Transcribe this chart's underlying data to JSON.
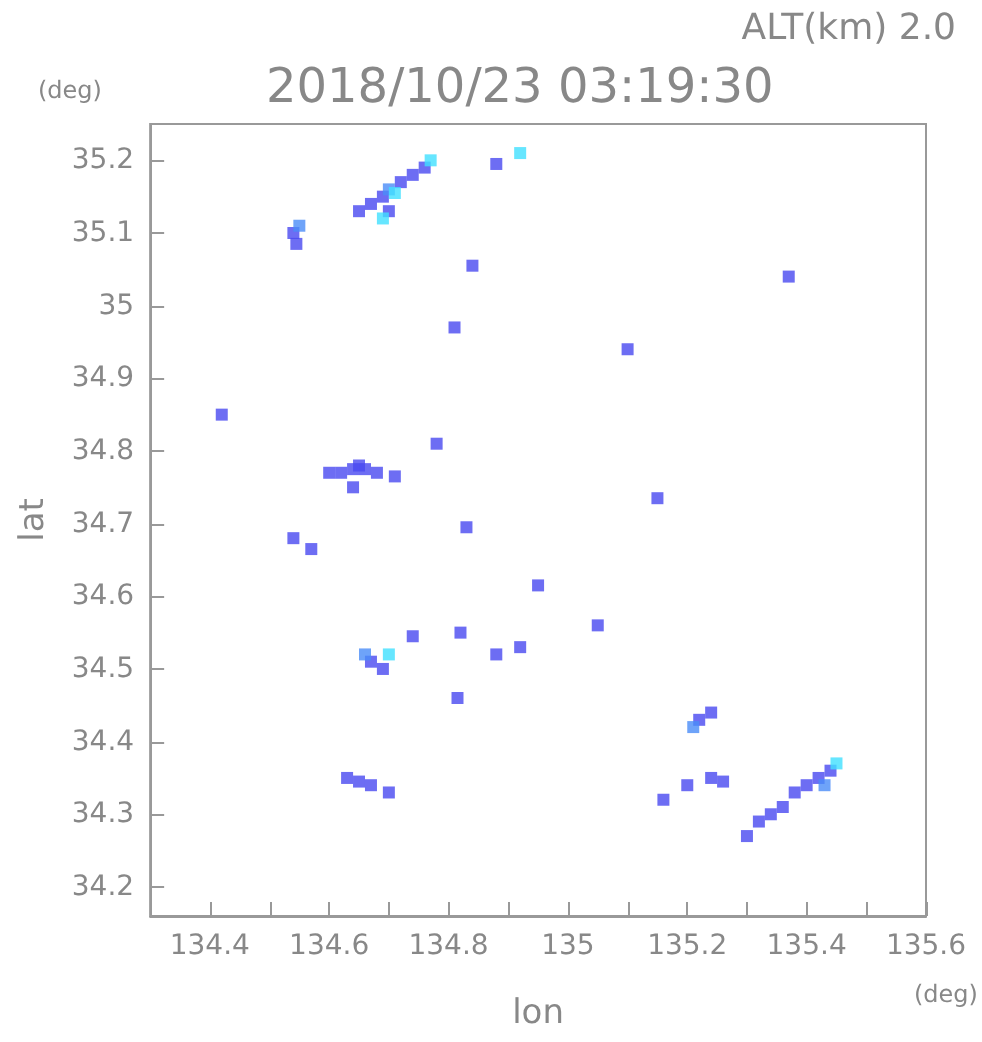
{
  "chart_data": {
    "type": "scatter",
    "title": "2018/10/23 03:19:30",
    "subtitle": "ALT(km) 2.0",
    "xlabel": "lon",
    "ylabel": "lat",
    "annotations": [
      "(deg)",
      "(deg)"
    ],
    "xlim": [
      134.3,
      135.6
    ],
    "ylim": [
      34.16,
      35.25
    ],
    "xticks": [
      {
        "value": 134.3,
        "label": null
      },
      134.4,
      {
        "value": 134.5,
        "label": null
      },
      134.6,
      {
        "value": 134.7,
        "label": null
      },
      134.8,
      {
        "value": 134.9,
        "label": null
      },
      135.0,
      {
        "value": 135.1,
        "label": null
      },
      135.2,
      {
        "value": 135.3,
        "label": null
      },
      135.4,
      {
        "value": 135.5,
        "label": null
      },
      135.6
    ],
    "yticks": [
      34.2,
      34.3,
      34.4,
      34.5,
      34.6,
      34.7,
      34.8,
      34.9,
      35.0,
      35.1,
      35.2
    ],
    "grid": false,
    "marker": "square",
    "series": [
      {
        "color": "#4848f0",
        "x": [
          134.54,
          134.545,
          134.65,
          134.67,
          134.69,
          134.7,
          134.72,
          134.74,
          134.76,
          134.88,
          134.84,
          134.81,
          134.42,
          134.78,
          135.1,
          135.37,
          134.6,
          134.62,
          134.64,
          134.65,
          134.66,
          134.68,
          134.71,
          134.64,
          134.54,
          134.57,
          134.83,
          135.15,
          134.95,
          135.05,
          134.82,
          134.88,
          134.92,
          134.67,
          134.74,
          134.69,
          134.815,
          134.63,
          134.65,
          134.67,
          134.7,
          135.16,
          135.2,
          135.24,
          135.26,
          135.22,
          135.24,
          135.3,
          135.32,
          135.34,
          135.36,
          135.38,
          135.4,
          135.42,
          135.44
        ],
        "values": [
          35.1,
          35.085,
          35.13,
          35.14,
          35.15,
          35.13,
          35.17,
          35.18,
          35.19,
          35.195,
          35.055,
          34.97,
          34.85,
          34.81,
          34.94,
          35.04,
          34.77,
          34.77,
          34.775,
          34.78,
          34.775,
          34.77,
          34.765,
          34.75,
          34.68,
          34.665,
          34.695,
          34.735,
          34.615,
          34.56,
          34.55,
          34.52,
          34.53,
          34.51,
          34.545,
          34.5,
          34.46,
          34.35,
          34.345,
          34.34,
          34.33,
          34.32,
          34.34,
          34.35,
          34.345,
          34.43,
          34.44,
          34.27,
          34.29,
          34.3,
          34.31,
          34.33,
          34.34,
          34.35,
          34.36
        ]
      },
      {
        "color": "#4a8cf8",
        "x": [
          134.55,
          134.7,
          135.21,
          135.43,
          134.66
        ],
        "values": [
          35.11,
          35.16,
          34.42,
          34.34,
          34.52
        ]
      },
      {
        "color": "#40e0ff",
        "x": [
          134.77,
          134.92,
          134.71,
          134.69,
          134.7,
          135.45
        ],
        "values": [
          35.2,
          35.21,
          35.155,
          35.12,
          34.52,
          34.37
        ]
      }
    ]
  }
}
